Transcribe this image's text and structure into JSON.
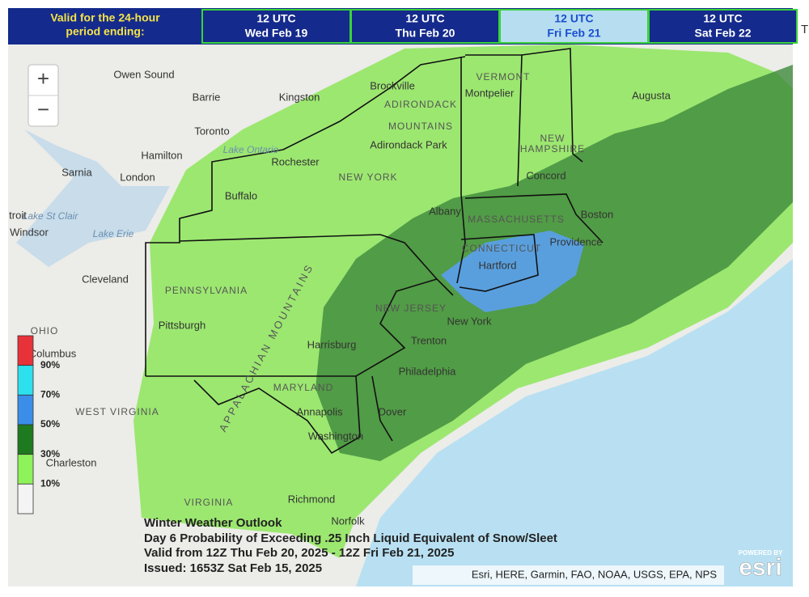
{
  "header": {
    "label_lines": [
      "Valid for the 24-hour",
      "period ending:"
    ],
    "tabs": [
      {
        "time": "12 UTC",
        "date": "Wed Feb 19",
        "selected": false
      },
      {
        "time": "12 UTC",
        "date": "Thu Feb 20",
        "selected": false
      },
      {
        "time": "12 UTC",
        "date": "Fri Feb 21",
        "selected": true
      },
      {
        "time": "12 UTC",
        "date": "Sat Feb 22",
        "selected": false
      }
    ]
  },
  "map": {
    "zoom": [
      "+",
      "−"
    ],
    "places": [
      "Owen Sound",
      "Barrie",
      "Kingston",
      "Brockville",
      "Toronto",
      "Hamilton",
      "Lake Ontario",
      "Rochester",
      "Buffalo",
      "Sarnia",
      "London",
      "troit",
      "Lake St Clair",
      "Windsor",
      "Lake Erie",
      "Cleveland",
      "PENNSYLVANIA",
      "Pittsburgh",
      "OHIO",
      "Columbus",
      "WEST VIRGINIA",
      "Charleston",
      "VIRGINIA",
      "Richmond",
      "Norfolk",
      "Washington",
      "Annapolis",
      "MARYLAND",
      "Dover",
      "Philadelphia",
      "Trenton",
      "NEW JERSEY",
      "New York",
      "Harrisburg",
      "Albany",
      "NEW YORK",
      "ADIRONDACK",
      "MOUNTAINS",
      "Adirondack Park",
      "Montpelier",
      "VERMONT",
      "NEW",
      "HAMPSHIRE",
      "Concord",
      "Augusta",
      "MASSACHUSETTS",
      "Boston",
      "CONNECTICUT",
      "Hartford",
      "Providence",
      "APPALACHIAN MOUNTAINS"
    ],
    "legend": {
      "colors": [
        "#e8323a",
        "#2de0ee",
        "#3a8ee8",
        "#1e7a1e",
        "#8ef25a",
        "#f4f4f4"
      ],
      "labels": [
        "90%",
        "70%",
        "50%",
        "30%",
        "10%"
      ]
    },
    "caption": [
      "Winter Weather Outlook",
      "Day 6 Probability of Exceeding .25 Inch Liquid Equivalent of Snow/Sleet",
      "Valid from 12Z Thu Feb 20, 2025 - 12Z Fri Feb 21, 2025",
      "Issued: 1653Z Sat Feb 15, 2025"
    ],
    "attribution": "Esri, HERE, Garmin, FAO, NOAA, USGS, EPA, NPS",
    "logo": [
      "POWERED BY",
      "esri"
    ]
  },
  "side_panel": {
    "text": "T"
  }
}
